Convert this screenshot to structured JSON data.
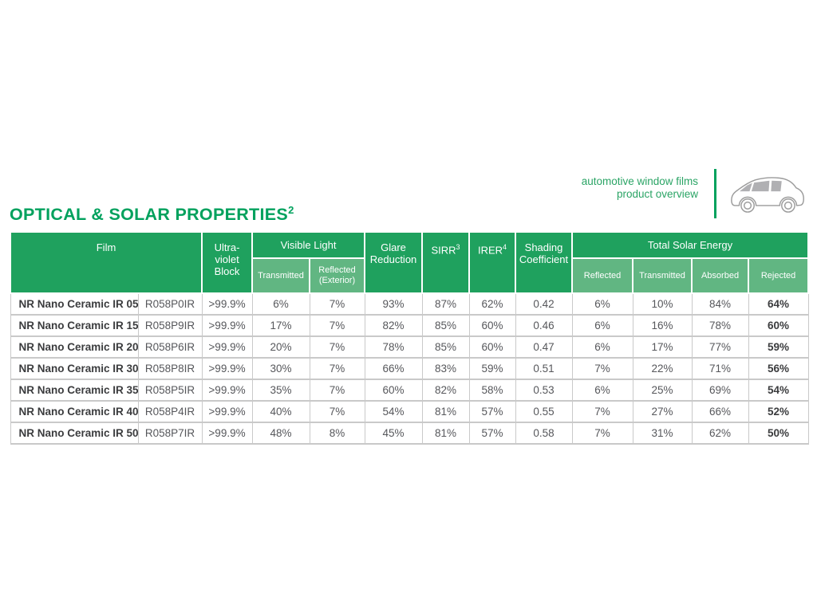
{
  "brand": {
    "line1": "automotive window films",
    "line2": "product overview"
  },
  "title": {
    "text": "OPTICAL & SOLAR PROPERTIES",
    "sup": "2"
  },
  "colors": {
    "header_green": "#1fa15e",
    "subheader_green": "#61b682",
    "title_green": "#00a15d",
    "brand_green": "#2aa465",
    "cell_border_gray": "#c9c9c9",
    "text_dark": "#3b3c3e",
    "text_gray": "#56575b",
    "car_outline_gray": "#9b9b9b",
    "car_window_gray": "#b0b0b3"
  },
  "car_icon": "car-side-outline",
  "table": {
    "headers": {
      "film": "Film",
      "uv_block": "Ultra-violet Block",
      "visible_light": "Visible Light",
      "visible_light_sub": [
        "Transmitted",
        "Reflected (Exterior)"
      ],
      "glare_reduction": "Glare Reduction",
      "sirr": {
        "label": "SIRR",
        "sup": "3"
      },
      "irer": {
        "label": "IRER",
        "sup": "4"
      },
      "shading_coefficient": "Shading Coefficient",
      "total_solar_energy": "Total Solar Energy",
      "tse_sub": [
        "Reflected",
        "Transmitted",
        "Absorbed",
        "Rejected"
      ]
    },
    "column_keys": [
      "film",
      "code",
      "uv",
      "vl_transmitted",
      "vl_reflected",
      "glare",
      "sirr",
      "irer",
      "shading",
      "tse_reflected",
      "tse_transmitted",
      "tse_absorbed",
      "tse_rejected"
    ],
    "rows": [
      {
        "film": "NR Nano Ceramic IR 05",
        "code": "R058P0IR",
        "uv": ">99.9%",
        "vl_transmitted": "6%",
        "vl_reflected": "7%",
        "glare": "93%",
        "sirr": "87%",
        "irer": "62%",
        "shading": "0.42",
        "tse_reflected": "6%",
        "tse_transmitted": "10%",
        "tse_absorbed": "84%",
        "tse_rejected": "64%"
      },
      {
        "film": "NR Nano Ceramic IR 15",
        "code": "R058P9IR",
        "uv": ">99.9%",
        "vl_transmitted": "17%",
        "vl_reflected": "7%",
        "glare": "82%",
        "sirr": "85%",
        "irer": "60%",
        "shading": "0.46",
        "tse_reflected": "6%",
        "tse_transmitted": "16%",
        "tse_absorbed": "78%",
        "tse_rejected": "60%"
      },
      {
        "film": "NR Nano Ceramic IR 20",
        "code": "R058P6IR",
        "uv": ">99.9%",
        "vl_transmitted": "20%",
        "vl_reflected": "7%",
        "glare": "78%",
        "sirr": "85%",
        "irer": "60%",
        "shading": "0.47",
        "tse_reflected": "6%",
        "tse_transmitted": "17%",
        "tse_absorbed": "77%",
        "tse_rejected": "59%"
      },
      {
        "film": "NR Nano Ceramic IR 30",
        "code": "R058P8IR",
        "uv": ">99.9%",
        "vl_transmitted": "30%",
        "vl_reflected": "7%",
        "glare": "66%",
        "sirr": "83%",
        "irer": "59%",
        "shading": "0.51",
        "tse_reflected": "7%",
        "tse_transmitted": "22%",
        "tse_absorbed": "71%",
        "tse_rejected": "56%"
      },
      {
        "film": "NR Nano Ceramic IR 35",
        "code": "R058P5IR",
        "uv": ">99.9%",
        "vl_transmitted": "35%",
        "vl_reflected": "7%",
        "glare": "60%",
        "sirr": "82%",
        "irer": "58%",
        "shading": "0.53",
        "tse_reflected": "6%",
        "tse_transmitted": "25%",
        "tse_absorbed": "69%",
        "tse_rejected": "54%"
      },
      {
        "film": "NR Nano Ceramic IR 40",
        "code": "R058P4IR",
        "uv": ">99.9%",
        "vl_transmitted": "40%",
        "vl_reflected": "7%",
        "glare": "54%",
        "sirr": "81%",
        "irer": "57%",
        "shading": "0.55",
        "tse_reflected": "7%",
        "tse_transmitted": "27%",
        "tse_absorbed": "66%",
        "tse_rejected": "52%"
      },
      {
        "film": "NR Nano Ceramic IR 50",
        "code": "R058P7IR",
        "uv": ">99.9%",
        "vl_transmitted": "48%",
        "vl_reflected": "8%",
        "glare": "45%",
        "sirr": "81%",
        "irer": "57%",
        "shading": "0.58",
        "tse_reflected": "7%",
        "tse_transmitted": "31%",
        "tse_absorbed": "62%",
        "tse_rejected": "50%"
      }
    ]
  }
}
